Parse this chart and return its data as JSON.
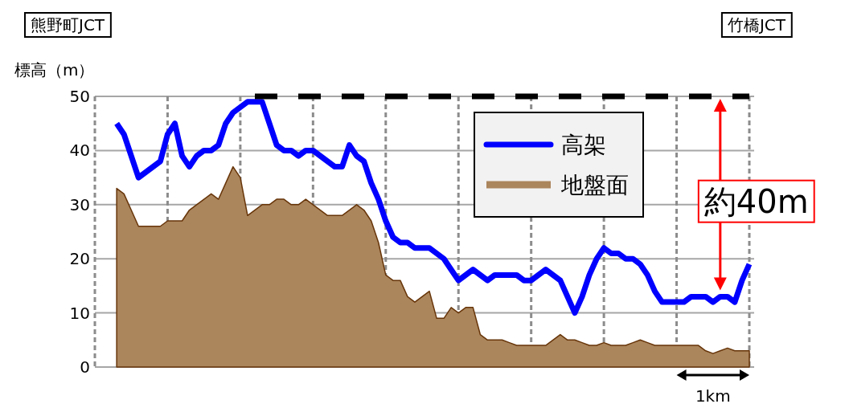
{
  "chart_data": {
    "type": "line",
    "ylabel": "標高（m）",
    "categories": [
      null,
      null,
      null,
      null,
      null,
      null,
      null,
      null,
      null,
      null,
      null,
      null,
      null,
      null,
      null,
      null,
      null,
      null,
      null,
      null,
      null,
      null,
      null,
      null,
      null,
      null,
      null,
      null,
      null,
      null,
      null,
      null,
      null,
      null,
      null,
      null,
      null,
      null,
      null,
      null,
      null,
      null,
      null,
      null,
      null,
      null,
      null,
      null,
      null,
      null,
      null,
      null,
      null,
      null,
      null,
      null,
      null,
      null,
      null,
      null,
      null,
      null,
      null,
      null,
      null,
      null,
      null,
      null,
      null,
      null,
      null,
      null,
      null,
      null,
      null,
      null,
      null,
      null,
      null,
      null,
      null,
      null,
      null,
      null,
      null,
      null,
      null,
      null,
      null,
      null,
      null
    ],
    "ylim": [
      0,
      50
    ],
    "yticks": [
      0,
      10,
      20,
      30,
      40,
      50
    ],
    "grid": true,
    "legend": "top right",
    "series": [
      {
        "name": "高架",
        "color": "#0000ff",
        "values": [
          null,
          null,
          null,
          45,
          43,
          39,
          35,
          36,
          37,
          38,
          43,
          45,
          39,
          37,
          39,
          40,
          40,
          41,
          45,
          47,
          48,
          49,
          49,
          49,
          45,
          41,
          40,
          40,
          39,
          40,
          40,
          39,
          38,
          37,
          37,
          41,
          39,
          38,
          34,
          31,
          27,
          24,
          23,
          23,
          22,
          22,
          22,
          21,
          20,
          18,
          16,
          17,
          18,
          17,
          16,
          17,
          17,
          17,
          17,
          16,
          16,
          17,
          18,
          17,
          16,
          13,
          10,
          13,
          17,
          20,
          22,
          21,
          21,
          20,
          20,
          19,
          17,
          14,
          12,
          12,
          12,
          12,
          13,
          13,
          13,
          12,
          13,
          13,
          12,
          16,
          19
        ]
      },
      {
        "name": "地盤面",
        "type": "area",
        "color": "#ab855c",
        "values": [
          null,
          null,
          null,
          33,
          32,
          29,
          26,
          26,
          26,
          26,
          27,
          27,
          27,
          29,
          30,
          31,
          32,
          31,
          34,
          37,
          35,
          28,
          29,
          30,
          30,
          31,
          31,
          30,
          30,
          31,
          30,
          29,
          28,
          28,
          28,
          29,
          30,
          29,
          27,
          23,
          17,
          16,
          16,
          13,
          12,
          13,
          14,
          9,
          9,
          11,
          10,
          11,
          11,
          6,
          5,
          5,
          5,
          4.5,
          4,
          4,
          4,
          4,
          4,
          5,
          6,
          5,
          5,
          4.5,
          4,
          4,
          4.5,
          4,
          4,
          4,
          4.5,
          5,
          4.5,
          4,
          4,
          4,
          4,
          4,
          4,
          4,
          3,
          2.5,
          3,
          3.5,
          3,
          3,
          3
        ]
      },
      {
        "line_style": "dashed",
        "color": "#000000",
        "values": [
          null,
          null,
          null,
          null,
          null,
          null,
          null,
          null,
          null,
          null,
          null,
          null,
          null,
          null,
          null,
          null,
          null,
          null,
          null,
          null,
          null,
          null,
          50,
          50,
          50,
          50,
          50,
          50,
          50,
          50,
          50,
          50,
          50,
          50,
          50,
          50,
          50,
          50,
          50,
          50,
          50,
          50,
          50,
          50,
          50,
          50,
          50,
          50,
          50,
          50,
          50,
          50,
          50,
          50,
          50,
          50,
          50,
          50,
          50,
          50,
          50,
          50,
          50,
          50,
          50,
          50,
          50,
          50,
          50,
          50,
          50,
          50,
          50,
          50,
          50,
          50,
          50,
          50,
          50,
          50,
          50,
          50,
          50,
          50,
          50,
          50,
          50,
          50,
          50,
          50,
          50
        ]
      }
    ],
    "annotations": [
      "熊野町JCT",
      "竹橋JCT",
      "約40m",
      "1km"
    ]
  }
}
